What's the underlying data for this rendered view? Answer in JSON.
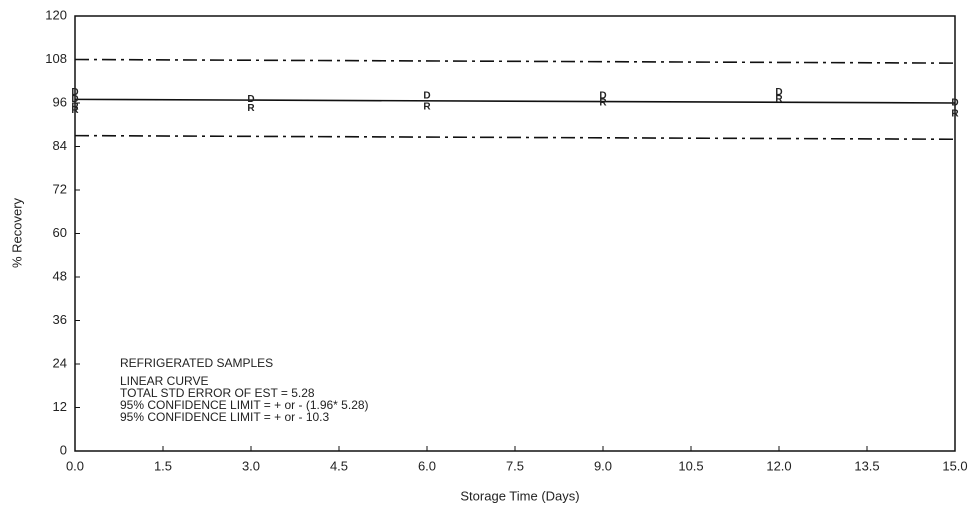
{
  "chart_data": {
    "type": "line",
    "x_label": "Storage Time (Days)",
    "y_label": "% Recovery",
    "xlim": [
      0,
      15
    ],
    "ylim": [
      0,
      120
    ],
    "xticks": [
      {
        "value": 0,
        "label": "0.0"
      },
      1.5,
      {
        "value": 3,
        "label": "3.0"
      },
      4.5,
      {
        "value": 6,
        "label": "6.0"
      },
      7.5,
      {
        "value": 9,
        "label": "9.0"
      },
      10.5,
      {
        "value": 12,
        "label": "12.0"
      },
      13.5,
      {
        "value": 15,
        "label": "15.0"
      }
    ],
    "yticks": [
      0,
      12,
      24,
      36,
      48,
      60,
      72,
      84,
      96,
      108,
      120
    ],
    "series": [
      {
        "x": [
          0,
          15
        ],
        "values": [
          97,
          96
        ],
        "color": "#111111",
        "style": "solid"
      },
      {
        "x": [
          0,
          15
        ],
        "values": [
          108,
          107
        ],
        "color": "#111111",
        "style": "dashdot"
      },
      {
        "x": [
          0,
          15
        ],
        "values": [
          87,
          86
        ],
        "color": "#111111",
        "style": "dashdot"
      }
    ],
    "points": [
      {
        "marker": "D",
        "color": "#111111",
        "x": [
          0,
          0,
          3,
          6,
          9,
          12,
          15
        ],
        "values": [
          99,
          97,
          97,
          98,
          98,
          99,
          96
        ]
      },
      {
        "marker": "R",
        "color": "#111111",
        "x": [
          0,
          0,
          3,
          6,
          9,
          12,
          15
        ],
        "values": [
          95,
          94,
          94.5,
          95,
          96,
          97,
          93
        ]
      }
    ],
    "annotations": [
      "REFRIGERATED SAMPLES",
      "LINEAR CURVE",
      "TOTAL STD ERROR OF EST =  5.28",
      "95% CONFIDENCE LIMIT = + or - (1.96* 5.28)",
      "95% CONFIDENCE LIMIT = + or -  10.3"
    ]
  }
}
